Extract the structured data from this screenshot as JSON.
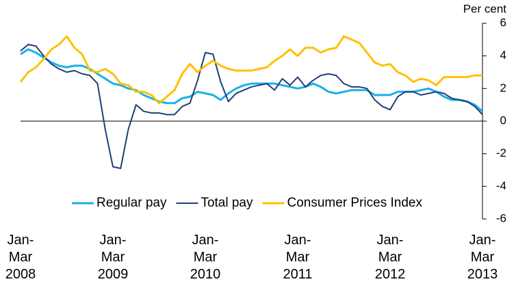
{
  "chart_data": {
    "type": "line",
    "y_axis_label": "Per cent",
    "categories": [
      "Jan-Mar 2008",
      null,
      null,
      null,
      null,
      null,
      null,
      null,
      null,
      null,
      null,
      null,
      "Jan-Mar 2009",
      null,
      null,
      null,
      null,
      null,
      null,
      null,
      null,
      null,
      null,
      null,
      "Jan-Mar 2010",
      null,
      null,
      null,
      null,
      null,
      null,
      null,
      null,
      null,
      null,
      null,
      "Jan-Mar 2011",
      null,
      null,
      null,
      null,
      null,
      null,
      null,
      null,
      null,
      null,
      null,
      "Jan-Mar 2012",
      null,
      null,
      null,
      null,
      null,
      null,
      null,
      null,
      null,
      null,
      null,
      "Jan-Mar 2013"
    ],
    "series": [
      {
        "name": "Regular pay",
        "color": "#1ab0e8",
        "values": [
          4.1,
          4.4,
          4.2,
          3.9,
          3.6,
          3.4,
          3.3,
          3.4,
          3.4,
          3.2,
          2.9,
          2.6,
          2.3,
          2.2,
          2.0,
          1.9,
          1.6,
          1.4,
          1.2,
          1.1,
          1.1,
          1.4,
          1.5,
          1.8,
          1.7,
          1.6,
          1.3,
          1.7,
          2.0,
          2.2,
          2.3,
          2.3,
          2.3,
          2.3,
          2.2,
          2.1,
          2.0,
          2.1,
          2.3,
          2.1,
          1.8,
          1.7,
          1.8,
          1.9,
          1.9,
          1.9,
          1.6,
          1.6,
          1.6,
          1.8,
          1.8,
          1.8,
          1.9,
          2.0,
          1.8,
          1.5,
          1.3,
          1.3,
          1.2,
          1.0,
          0.6
        ]
      },
      {
        "name": "Total pay",
        "color": "#1f3f77",
        "values": [
          4.3,
          4.7,
          4.6,
          4.0,
          3.5,
          3.2,
          3.0,
          3.1,
          2.9,
          2.8,
          2.3,
          -0.5,
          -2.8,
          -2.9,
          -0.5,
          1.0,
          0.6,
          0.5,
          0.5,
          0.4,
          0.4,
          0.9,
          1.1,
          2.5,
          4.2,
          4.1,
          2.4,
          1.2,
          1.7,
          1.9,
          2.1,
          2.2,
          2.3,
          1.9,
          2.6,
          2.2,
          2.7,
          2.1,
          2.5,
          2.8,
          2.9,
          2.8,
          2.3,
          2.1,
          2.1,
          2.0,
          1.3,
          0.9,
          0.7,
          1.5,
          1.8,
          1.8,
          1.6,
          1.7,
          1.8,
          1.7,
          1.4,
          1.3,
          1.2,
          0.9,
          0.4
        ]
      },
      {
        "name": "Consumer Prices Index",
        "color": "#ffc000",
        "values": [
          2.4,
          3.0,
          3.3,
          3.8,
          4.4,
          4.7,
          5.2,
          4.5,
          4.1,
          3.1,
          3.0,
          3.2,
          2.9,
          2.3,
          2.2,
          1.8,
          1.8,
          1.6,
          1.1,
          1.5,
          1.9,
          2.9,
          3.5,
          3.0,
          3.4,
          3.7,
          3.4,
          3.2,
          3.1,
          3.1,
          3.1,
          3.2,
          3.3,
          3.7,
          4.0,
          4.4,
          4.0,
          4.5,
          4.5,
          4.2,
          4.4,
          4.5,
          5.2,
          5.0,
          4.8,
          4.2,
          3.6,
          3.4,
          3.5,
          3.0,
          2.8,
          2.4,
          2.6,
          2.5,
          2.2,
          2.7,
          2.7,
          2.7,
          2.7,
          2.8,
          2.8
        ]
      }
    ],
    "ylim": [
      -6,
      6
    ],
    "yticks": [
      -6,
      -4,
      -2,
      0,
      2,
      4,
      6
    ],
    "y_axis_side": "right",
    "grid": false
  }
}
